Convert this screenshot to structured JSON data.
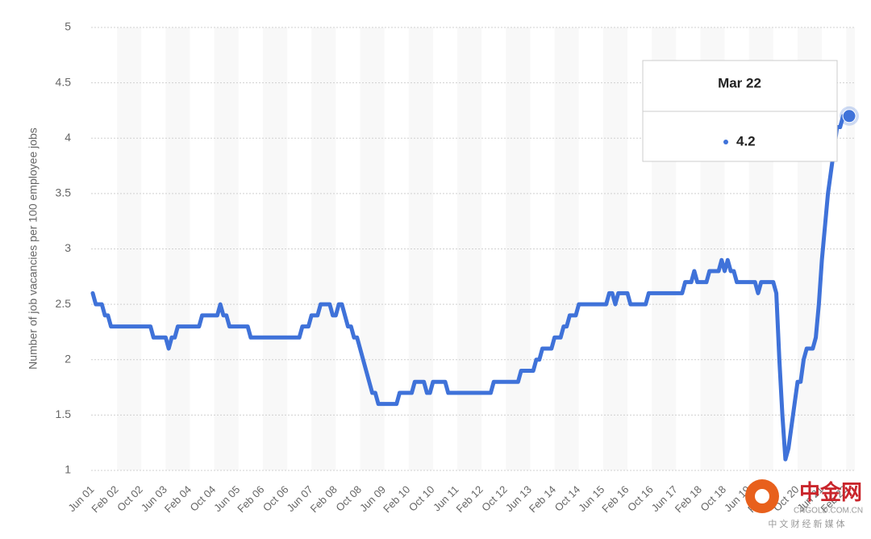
{
  "chart_data": {
    "type": "line",
    "y_axis_label": "Number of job vacancies per 100 employee jobs",
    "categories": [
      "Jun 01",
      null,
      null,
      null,
      null,
      null,
      null,
      null,
      "Feb 02",
      null,
      null,
      null,
      null,
      null,
      null,
      null,
      "Oct 02",
      null,
      null,
      null,
      null,
      null,
      null,
      null,
      "Jun 03",
      null,
      null,
      null,
      null,
      null,
      null,
      null,
      "Feb 04",
      null,
      null,
      null,
      null,
      null,
      null,
      null,
      "Oct 04",
      null,
      null,
      null,
      null,
      null,
      null,
      null,
      "Jun 05",
      null,
      null,
      null,
      null,
      null,
      null,
      null,
      "Feb 06",
      null,
      null,
      null,
      null,
      null,
      null,
      null,
      "Oct 06",
      null,
      null,
      null,
      null,
      null,
      null,
      null,
      "Jun 07",
      null,
      null,
      null,
      null,
      null,
      null,
      null,
      "Feb 08",
      null,
      null,
      null,
      null,
      null,
      null,
      null,
      "Oct 08",
      null,
      null,
      null,
      null,
      null,
      null,
      null,
      "Jun 09",
      null,
      null,
      null,
      null,
      null,
      null,
      null,
      "Feb 10",
      null,
      null,
      null,
      null,
      null,
      null,
      null,
      "Oct 10",
      null,
      null,
      null,
      null,
      null,
      null,
      null,
      "Jun 11",
      null,
      null,
      null,
      null,
      null,
      null,
      null,
      "Feb 12",
      null,
      null,
      null,
      null,
      null,
      null,
      null,
      "Oct 12",
      null,
      null,
      null,
      null,
      null,
      null,
      null,
      "Jun 13",
      null,
      null,
      null,
      null,
      null,
      null,
      null,
      "Feb 14",
      null,
      null,
      null,
      null,
      null,
      null,
      null,
      "Oct 14",
      null,
      null,
      null,
      null,
      null,
      null,
      null,
      "Jun 15",
      null,
      null,
      null,
      null,
      null,
      null,
      null,
      "Feb 16",
      null,
      null,
      null,
      null,
      null,
      null,
      null,
      "Oct 16",
      null,
      null,
      null,
      null,
      null,
      null,
      null,
      "Jun 17",
      null,
      null,
      null,
      null,
      null,
      null,
      null,
      "Feb 18",
      null,
      null,
      null,
      null,
      null,
      null,
      null,
      "Oct 18",
      null,
      null,
      null,
      null,
      null,
      null,
      null,
      "Jun 19",
      null,
      null,
      null,
      null,
      null,
      null,
      null,
      "Feb 20",
      null,
      null,
      null,
      null,
      null,
      null,
      null,
      "Oct 20",
      null,
      null,
      null,
      null,
      null,
      null,
      null,
      "Jun 21",
      null,
      null,
      null,
      null,
      null,
      null,
      null,
      "Feb 22",
      "Mar 22"
    ],
    "values": [
      2.6,
      2.5,
      2.5,
      2.5,
      2.4,
      2.4,
      2.3,
      2.3,
      2.3,
      2.3,
      2.3,
      2.3,
      2.3,
      2.3,
      2.3,
      2.3,
      2.3,
      2.3,
      2.3,
      2.3,
      2.2,
      2.2,
      2.2,
      2.2,
      2.2,
      2.1,
      2.2,
      2.2,
      2.3,
      2.3,
      2.3,
      2.3,
      2.3,
      2.3,
      2.3,
      2.3,
      2.4,
      2.4,
      2.4,
      2.4,
      2.4,
      2.4,
      2.5,
      2.4,
      2.4,
      2.3,
      2.3,
      2.3,
      2.3,
      2.3,
      2.3,
      2.3,
      2.2,
      2.2,
      2.2,
      2.2,
      2.2,
      2.2,
      2.2,
      2.2,
      2.2,
      2.2,
      2.2,
      2.2,
      2.2,
      2.2,
      2.2,
      2.2,
      2.2,
      2.3,
      2.3,
      2.3,
      2.4,
      2.4,
      2.4,
      2.5,
      2.5,
      2.5,
      2.5,
      2.4,
      2.4,
      2.5,
      2.5,
      2.4,
      2.3,
      2.3,
      2.2,
      2.2,
      2.1,
      2.0,
      1.9,
      1.8,
      1.7,
      1.7,
      1.6,
      1.6,
      1.6,
      1.6,
      1.6,
      1.6,
      1.6,
      1.7,
      1.7,
      1.7,
      1.7,
      1.7,
      1.8,
      1.8,
      1.8,
      1.8,
      1.7,
      1.7,
      1.8,
      1.8,
      1.8,
      1.8,
      1.8,
      1.7,
      1.7,
      1.7,
      1.7,
      1.7,
      1.7,
      1.7,
      1.7,
      1.7,
      1.7,
      1.7,
      1.7,
      1.7,
      1.7,
      1.7,
      1.8,
      1.8,
      1.8,
      1.8,
      1.8,
      1.8,
      1.8,
      1.8,
      1.8,
      1.9,
      1.9,
      1.9,
      1.9,
      1.9,
      2.0,
      2.0,
      2.1,
      2.1,
      2.1,
      2.1,
      2.2,
      2.2,
      2.2,
      2.3,
      2.3,
      2.4,
      2.4,
      2.4,
      2.5,
      2.5,
      2.5,
      2.5,
      2.5,
      2.5,
      2.5,
      2.5,
      2.5,
      2.5,
      2.6,
      2.6,
      2.5,
      2.6,
      2.6,
      2.6,
      2.6,
      2.5,
      2.5,
      2.5,
      2.5,
      2.5,
      2.5,
      2.6,
      2.6,
      2.6,
      2.6,
      2.6,
      2.6,
      2.6,
      2.6,
      2.6,
      2.6,
      2.6,
      2.6,
      2.7,
      2.7,
      2.7,
      2.8,
      2.7,
      2.7,
      2.7,
      2.7,
      2.8,
      2.8,
      2.8,
      2.8,
      2.9,
      2.8,
      2.9,
      2.8,
      2.8,
      2.7,
      2.7,
      2.7,
      2.7,
      2.7,
      2.7,
      2.7,
      2.6,
      2.7,
      2.7,
      2.7,
      2.7,
      2.7,
      2.6,
      2.0,
      1.5,
      1.1,
      1.2,
      1.4,
      1.6,
      1.8,
      1.8,
      2.0,
      2.1,
      2.1,
      2.1,
      2.2,
      2.5,
      2.9,
      3.2,
      3.5,
      3.7,
      3.9,
      4.1,
      4.1,
      4.2,
      4.2,
      4.2
    ],
    "color": "#3f72d9",
    "ylim": [
      1,
      5
    ],
    "yticks": [
      1,
      1.5,
      2,
      2.5,
      3,
      3.5,
      4,
      4.5,
      5
    ],
    "grid": true,
    "tooltip_index": 249
  },
  "watermark": {
    "brand": "中金网",
    "domain": "CNGOLD.COM.CN",
    "slogan": "中 文 财 经 新 媒 体"
  }
}
